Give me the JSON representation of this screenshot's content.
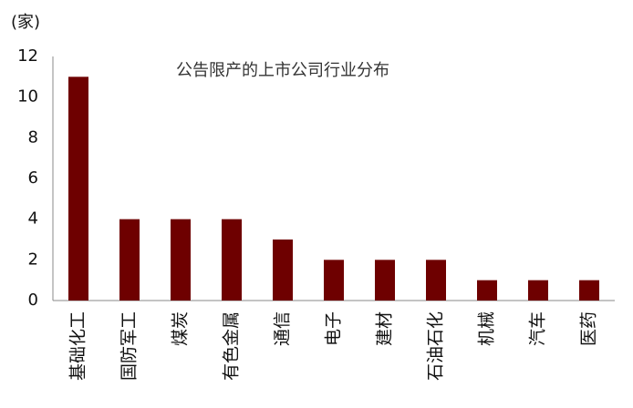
{
  "chart_data": {
    "type": "bar",
    "title": "公告限产的上市公司行业分布",
    "y_label": "(家)",
    "categories": [
      "基础化工",
      "国防军工",
      "煤炭",
      "有色金属",
      "通信",
      "电子",
      "建材",
      "石油石化",
      "机械",
      "汽车",
      "医药"
    ],
    "values": [
      11,
      4,
      4,
      4,
      3,
      2,
      2,
      2,
      1,
      1,
      1
    ],
    "color": "#6e0000",
    "ylim": [
      0,
      12
    ],
    "yticks": [
      0,
      2,
      4,
      6,
      8,
      10,
      12
    ],
    "grid": false
  }
}
